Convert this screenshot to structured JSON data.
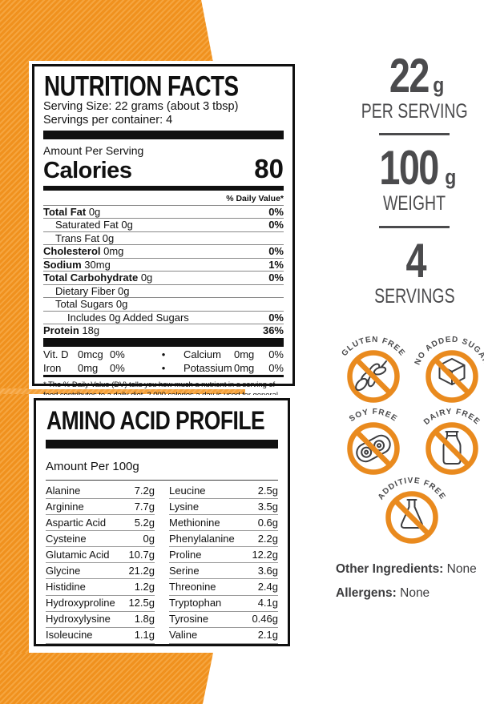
{
  "nutrition": {
    "title": "NUTRITION FACTS",
    "serving_size": "Serving Size: 22 grams (about 3 tbsp)",
    "servings_per_container": "Servings per container: 4",
    "amount_per_serving": "Amount Per Serving",
    "calories_label": "Calories",
    "calories_value": "80",
    "daily_value_header": "% Daily Value*",
    "bullet": "•",
    "rows": [
      {
        "name": "Total Fat",
        "amount": "0g",
        "dv": "0%",
        "bold": true,
        "indent": 0
      },
      {
        "name": "Saturated Fat",
        "amount": "0g",
        "dv": "0%",
        "bold": false,
        "indent": 1
      },
      {
        "name": "Trans Fat",
        "amount": "0g",
        "dv": "",
        "bold": false,
        "indent": 1
      },
      {
        "name": "Cholesterol",
        "amount": "0mg",
        "dv": "0%",
        "bold": true,
        "indent": 0
      },
      {
        "name": "Sodium",
        "amount": "30mg",
        "dv": "1%",
        "bold": true,
        "indent": 0
      },
      {
        "name": "Total Carbohydrate",
        "amount": "0g",
        "dv": "0%",
        "bold": true,
        "indent": 0
      },
      {
        "name": "Dietary Fiber",
        "amount": "0g",
        "dv": "",
        "bold": false,
        "indent": 1
      },
      {
        "name": "Total Sugars",
        "amount": "0g",
        "dv": "",
        "bold": false,
        "indent": 1
      },
      {
        "name": "Includes 0g Added Sugars",
        "amount": "",
        "dv": "0%",
        "bold": false,
        "indent": 2
      },
      {
        "name": "Protein",
        "amount": "18g",
        "dv": "36%",
        "bold": true,
        "indent": 0
      }
    ],
    "micros": [
      {
        "left_name": "Vit. D",
        "left_amount": "0mcg",
        "left_dv": "0%",
        "right_name": "Calcium",
        "right_amount": "0mg",
        "right_dv": "0%"
      },
      {
        "left_name": "Iron",
        "left_amount": "0mg",
        "left_dv": "0%",
        "right_name": "Potassium",
        "right_amount": "0mg",
        "right_dv": "0%"
      }
    ],
    "footnote": "* The % Daily Value (DV) tells you how much a nutrient in a serving of food contributes to a daily diet. 2,000 calories a day is used for general nutrition advice."
  },
  "amino": {
    "title": "AMINO ACID PROFILE",
    "subtitle": "Amount Per 100g",
    "left_rows": [
      {
        "name": "Alanine",
        "value": "7.2g"
      },
      {
        "name": "Arginine",
        "value": "7.7g"
      },
      {
        "name": "Aspartic Acid",
        "value": "5.2g"
      },
      {
        "name": "Cysteine",
        "value": "0g"
      },
      {
        "name": "Glutamic Acid",
        "value": "10.7g"
      },
      {
        "name": "Glycine",
        "value": "21.2g"
      },
      {
        "name": "Histidine",
        "value": "1.2g"
      },
      {
        "name": "Hydroxyproline",
        "value": "12.5g"
      },
      {
        "name": "Hydroxylysine",
        "value": "1.8g"
      },
      {
        "name": "Isoleucine",
        "value": "1.1g"
      }
    ],
    "right_rows": [
      {
        "name": "Leucine",
        "value": "2.5g"
      },
      {
        "name": "Lysine",
        "value": "3.5g"
      },
      {
        "name": "Methionine",
        "value": "0.6g"
      },
      {
        "name": "Phenylalanine",
        "value": "2.2g"
      },
      {
        "name": "Proline",
        "value": "12.2g"
      },
      {
        "name": "Serine",
        "value": "3.6g"
      },
      {
        "name": "Threonine",
        "value": "2.4g"
      },
      {
        "name": "Tryptophan",
        "value": "4.1g"
      },
      {
        "name": "Tyrosine",
        "value": "0.46g"
      },
      {
        "name": "Valine",
        "value": "2.1g"
      }
    ]
  },
  "stats": [
    {
      "value": "22",
      "unit": "g",
      "label": "PER SERVING"
    },
    {
      "value": "100",
      "unit": "g",
      "label": "WEIGHT"
    },
    {
      "value": "4",
      "unit": "",
      "label": "SERVINGS"
    }
  ],
  "badges": [
    {
      "label": "GLUTEN FREE",
      "icon": "wheat-icon"
    },
    {
      "label": "NO ADDED SUGAR",
      "icon": "sugar-cube-icon"
    },
    {
      "label": "SOY FREE",
      "icon": "soybean-icon"
    },
    {
      "label": "DAIRY FREE",
      "icon": "milk-bottle-icon"
    },
    {
      "label": "ADDITIVE FREE",
      "icon": "flask-icon"
    }
  ],
  "footer": {
    "other_ingredients_label": "Other Ingredients:",
    "other_ingredients_value": "None",
    "allergens_label": "Allergens:",
    "allergens_value": "None"
  },
  "colors": {
    "accent_orange": "#F0911E",
    "accent_orange_light": "#F5A53F",
    "badge_ring_orange": "#E98A1E",
    "dark_gray_text": "#4B4B4D",
    "label_black": "#101010"
  }
}
